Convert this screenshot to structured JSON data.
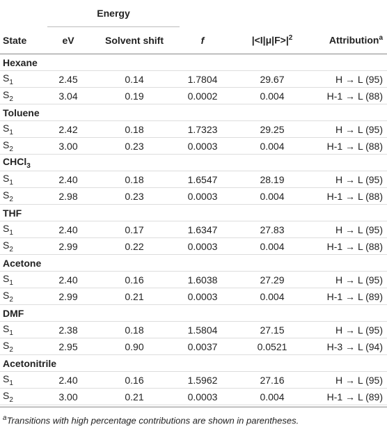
{
  "header": {
    "group_label": "Energy",
    "columns": [
      {
        "text": "State"
      },
      {
        "text": "eV"
      },
      {
        "text": "Solvent shift"
      },
      {
        "text": "f"
      },
      {
        "text": "|<I|μ|F>|",
        "sup": "2"
      },
      {
        "text": "Attribution",
        "sup": "a"
      }
    ]
  },
  "groups": [
    {
      "name": "Hexane",
      "rows": [
        {
          "state": "S",
          "state_sub": "1",
          "cells": [
            "2.45",
            "0.14",
            "1.7804",
            "29.67",
            "H → L (95)"
          ]
        },
        {
          "state": "S",
          "state_sub": "2",
          "cells": [
            "3.04",
            "0.19",
            "0.0002",
            "0.004",
            "H-1 → L (88)"
          ]
        }
      ]
    },
    {
      "name": "Toluene",
      "rows": [
        {
          "state": "S",
          "state_sub": "1",
          "cells": [
            "2.42",
            "0.18",
            "1.7323",
            "29.25",
            "H → L (95)"
          ]
        },
        {
          "state": "S",
          "state_sub": "2",
          "cells": [
            "3.00",
            "0.23",
            "0.0003",
            "0.004",
            "H-1 → L (88)"
          ]
        }
      ]
    },
    {
      "name": "CHCl",
      "name_sub": "3",
      "rows": [
        {
          "state": "S",
          "state_sub": "1",
          "cells": [
            "2.40",
            "0.18",
            "1.6547",
            "28.19",
            "H → L (95)"
          ]
        },
        {
          "state": "S",
          "state_sub": "2",
          "cells": [
            "2.98",
            "0.23",
            "0.0003",
            "0.004",
            "H-1 → L (88)"
          ]
        }
      ]
    },
    {
      "name": "THF",
      "rows": [
        {
          "state": "S",
          "state_sub": "1",
          "cells": [
            "2.40",
            "0.17",
            "1.6347",
            "27.83",
            "H → L (95)"
          ]
        },
        {
          "state": "S",
          "state_sub": "2",
          "cells": [
            "2.99",
            "0.22",
            "0.0003",
            "0.004",
            "H-1 → L (88)"
          ]
        }
      ]
    },
    {
      "name": "Acetone",
      "rows": [
        {
          "state": "S",
          "state_sub": "1",
          "cells": [
            "2.40",
            "0.16",
            "1.6038",
            "27.29",
            "H → L (95)"
          ]
        },
        {
          "state": "S",
          "state_sub": "2",
          "cells": [
            "2.99",
            "0.21",
            "0.0003",
            "0.004",
            "H-1 → L (89)"
          ]
        }
      ]
    },
    {
      "name": "DMF",
      "rows": [
        {
          "state": "S",
          "state_sub": "1",
          "cells": [
            "2.38",
            "0.18",
            "1.5804",
            "27.15",
            "H → L (95)"
          ]
        },
        {
          "state": "S",
          "state_sub": "2",
          "cells": [
            "2.95",
            "0.90",
            "0.0037",
            "0.0521",
            "H-3 → L (94)"
          ]
        }
      ]
    },
    {
      "name": "Acetonitrile",
      "rows": [
        {
          "state": "S",
          "state_sub": "1",
          "cells": [
            "2.40",
            "0.16",
            "1.5962",
            "27.16",
            "H → L (95)"
          ]
        },
        {
          "state": "S",
          "state_sub": "2",
          "cells": [
            "3.00",
            "0.21",
            "0.0003",
            "0.004",
            "H-1 → L (89)"
          ]
        }
      ]
    }
  ],
  "footnote": {
    "mark": "a",
    "text": "Transitions with high percentage contributions are shown in parentheses."
  }
}
